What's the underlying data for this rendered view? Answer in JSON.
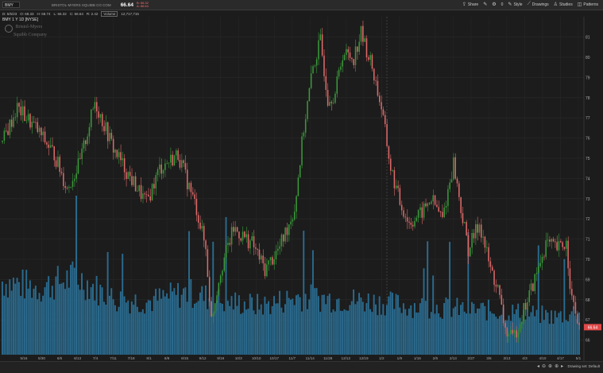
{
  "header": {
    "symbol": "BMY",
    "company": "BRISTOL-MYERS SQUIBB CO COM",
    "last_price": "66.64",
    "change_lines": [
      "B: 66.32",
      "A: 66.64"
    ],
    "tools": [
      {
        "name": "share-button",
        "label": "Share",
        "icon": "share-icon"
      },
      {
        "name": "drawing-tool-icon",
        "label": "",
        "icon": "pencil-icon"
      },
      {
        "name": "settings-button",
        "label": "",
        "icon": "gear-icon"
      },
      {
        "name": "counter",
        "label": "0",
        "icon": ""
      },
      {
        "name": "style-button",
        "label": "Style",
        "icon": "style-icon"
      },
      {
        "name": "drawings-button",
        "label": "Drawings",
        "icon": "drawings-icon"
      },
      {
        "name": "studies-button",
        "label": "Studies",
        "icon": "studies-icon"
      },
      {
        "name": "patterns-button",
        "label": "Patterns",
        "icon": "patterns-icon"
      }
    ]
  },
  "infobar": {
    "date": "D: 5/5/23",
    "open": "O: 68.33",
    "high": "H: 68.74",
    "low": "L: 66.32",
    "close": "C: 66.64",
    "range": "R: 2.42",
    "volume_label": "Volume",
    "volume_value": "12,717,715"
  },
  "chart_title": "BMY 1 Y 1D [NYSE]",
  "logo_text": [
    "Bristol-Myers",
    "Squibb Company"
  ],
  "last_price_tag": "66.64",
  "drawing_set": "Drawing set: Default",
  "colors": {
    "up": "#3a9a3a",
    "down": "#e06a6a",
    "volume": "#2a6b8f",
    "price_tag": "#e04848"
  },
  "chart_data": {
    "type": "candlestick",
    "ylim": [
      65,
      82
    ],
    "y_ticks": [
      66,
      67,
      68,
      69,
      70,
      71,
      72,
      73,
      74,
      75,
      76,
      77,
      78,
      79,
      80,
      81
    ],
    "x_tick_labels": [
      "5/16",
      "5/30",
      "6/6",
      "6/13",
      "7/4",
      "7/11",
      "7/18",
      "8/1",
      "8/8",
      "8/15",
      "9/12",
      "9/19",
      "10/3",
      "10/10",
      "10/17",
      "11/7",
      "11/14",
      "11/28",
      "12/12",
      "12/19",
      "1/2",
      "1/9",
      "1/16",
      "2/6",
      "2/13",
      "2/27",
      "3/6",
      "3/13",
      "4/3",
      "4/10",
      "4/17",
      "5/1"
    ],
    "price_path": [
      [
        0,
        75.8
      ],
      [
        8,
        77.5
      ],
      [
        18,
        76.5
      ],
      [
        28,
        75.2
      ],
      [
        35,
        73.5
      ],
      [
        42,
        74.8
      ],
      [
        50,
        77.8
      ],
      [
        60,
        75.5
      ],
      [
        68,
        74.2
      ],
      [
        78,
        72.8
      ],
      [
        85,
        74.5
      ],
      [
        95,
        75.2
      ],
      [
        105,
        72.5
      ],
      [
        110,
        70.5
      ],
      [
        113,
        67.0
      ],
      [
        118,
        69.5
      ],
      [
        125,
        71.5
      ],
      [
        135,
        70.8
      ],
      [
        142,
        69.5
      ],
      [
        150,
        70.6
      ],
      [
        158,
        72.5
      ],
      [
        163,
        76.5
      ],
      [
        168,
        79.5
      ],
      [
        172,
        80.8
      ],
      [
        176,
        78.0
      ],
      [
        180,
        78.2
      ],
      [
        184,
        80.2
      ],
      [
        190,
        80.0
      ],
      [
        194,
        81.2
      ],
      [
        200,
        79.5
      ],
      [
        205,
        77.5
      ],
      [
        210,
        74.5
      ],
      [
        215,
        72.8
      ],
      [
        220,
        71.8
      ],
      [
        226,
        72.2
      ],
      [
        232,
        73.0
      ],
      [
        238,
        72.0
      ],
      [
        244,
        74.8
      ],
      [
        248,
        72.5
      ],
      [
        252,
        70.5
      ],
      [
        258,
        71.8
      ],
      [
        264,
        69.5
      ],
      [
        268,
        68.5
      ],
      [
        272,
        66.5
      ],
      [
        276,
        66.0
      ],
      [
        282,
        67.5
      ],
      [
        288,
        69.0
      ],
      [
        294,
        70.8
      ],
      [
        300,
        70.5
      ],
      [
        305,
        70.8
      ],
      [
        308,
        68.0
      ],
      [
        312,
        66.6
      ]
    ],
    "volume_path": [
      [
        0,
        3.3
      ],
      [
        20,
        3.0
      ],
      [
        40,
        3.5
      ],
      [
        60,
        2.5
      ],
      [
        80,
        2.4
      ],
      [
        100,
        2.8
      ],
      [
        120,
        2.4
      ],
      [
        140,
        2.2
      ],
      [
        160,
        2.6
      ],
      [
        180,
        2.5
      ],
      [
        200,
        2.4
      ],
      [
        220,
        2.2
      ],
      [
        240,
        2.1
      ],
      [
        260,
        2.0
      ],
      [
        280,
        1.9
      ],
      [
        300,
        1.7
      ],
      [
        312,
        2.0
      ]
    ]
  }
}
